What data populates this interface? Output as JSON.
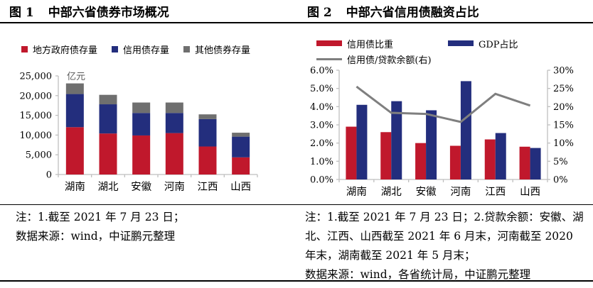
{
  "figure1": {
    "label": "图 1",
    "title": "中部六省债券市场概况",
    "notes": [
      "注：1.截至 2021 年 7 月 23 日；",
      "数据来源：wind，中证鹏元整理"
    ]
  },
  "figure2": {
    "label": "图 2",
    "title": "中部六省信用债融资占比",
    "notes": [
      "注：1.截至 2021 年 7 月 23 日；2.贷款余额：安徽、湖北、江西、山西截至 2021 年 6 月末，河南截至 2020 年末，湖南截至 2021 年 5 月末；",
      "数据来源：wind，各省统计局，中证鹏元整理"
    ]
  },
  "colors": {
    "red": "#c0182c",
    "blue": "#232e7d",
    "gray_bar": "#6f6f6f",
    "gray_line": "#7f7f7f",
    "axis": "#bfbfbf",
    "unit_text": "#595959"
  },
  "chart_data": [
    {
      "type": "bar",
      "stacked": true,
      "title": "图 1 中部六省债券市场概况",
      "unit": "亿元",
      "categories": [
        "湖南",
        "湖北",
        "安徽",
        "河南",
        "江西",
        "山西"
      ],
      "series": [
        {
          "name": "地方政府债存量",
          "color": "#c0182c",
          "values": [
            12000,
            10400,
            9900,
            10500,
            7100,
            4350
          ]
        },
        {
          "name": "信用债存量",
          "color": "#232e7d",
          "values": [
            8400,
            7400,
            5700,
            5100,
            6950,
            5250
          ]
        },
        {
          "name": "其他债券存量",
          "color": "#6f6f6f",
          "values": [
            2700,
            2400,
            2650,
            2650,
            1200,
            1000
          ]
        }
      ],
      "ylim": [
        0,
        25000
      ],
      "ytick_step": 5000,
      "yticks": [
        "0",
        "5,000",
        "10,000",
        "15,000",
        "20,000",
        "25,000"
      ],
      "legend_position": "top",
      "grid": false
    },
    {
      "type": "bar+line",
      "title": "图 2 中部六省信用债融资占比",
      "categories": [
        "湖南",
        "湖北",
        "安徽",
        "河南",
        "江西",
        "山西"
      ],
      "bar_series": [
        {
          "name": "信用债比重",
          "color": "#c0182c",
          "axis": "left",
          "values": [
            2.9,
            2.6,
            2.0,
            1.85,
            2.2,
            1.8
          ]
        },
        {
          "name": "GDP占比",
          "color": "#232e7d",
          "axis": "left",
          "values": [
            4.1,
            4.3,
            3.8,
            5.4,
            2.55,
            1.73
          ]
        }
      ],
      "line_series": [
        {
          "name": "信用债/贷款余额(右)",
          "color": "#7f7f7f",
          "axis": "right",
          "values": [
            25.5,
            18.3,
            18.0,
            15.8,
            23.5,
            20.3
          ]
        }
      ],
      "left_ylim": [
        0,
        6
      ],
      "right_ylim": [
        0,
        30
      ],
      "left_yticks": [
        "0.0%",
        "1.0%",
        "2.0%",
        "3.0%",
        "4.0%",
        "5.0%",
        "6.0%"
      ],
      "right_yticks": [
        "0%",
        "5%",
        "10%",
        "15%",
        "20%",
        "25%",
        "30%"
      ],
      "legend_position": "top",
      "grid": false
    }
  ]
}
